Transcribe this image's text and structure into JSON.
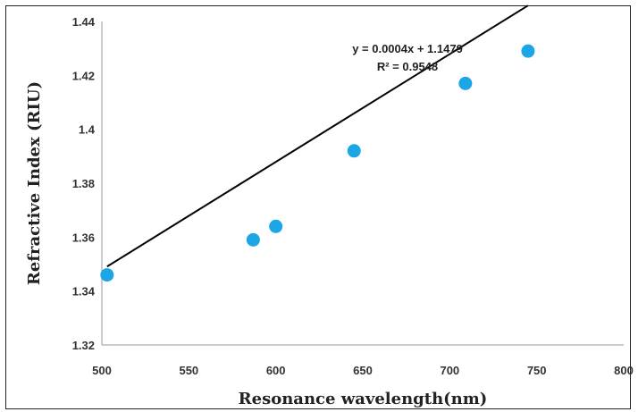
{
  "chart_data": {
    "type": "scatter",
    "title": "",
    "xlabel": "Resonance wavelength(nm)",
    "ylabel": "Refractive Index (RIU)",
    "xlim": [
      500,
      800
    ],
    "ylim": [
      1.32,
      1.44
    ],
    "x_ticks": [
      "500",
      "550",
      "600",
      "650",
      "700",
      "750",
      "800"
    ],
    "y_ticks": [
      "1.32",
      "1.34",
      "1.36",
      "1.38",
      "1.4",
      "1.42",
      "1.44"
    ],
    "grid": false,
    "points": [
      {
        "x": 503,
        "y": 1.346
      },
      {
        "x": 587,
        "y": 1.359
      },
      {
        "x": 600,
        "y": 1.364
      },
      {
        "x": 645,
        "y": 1.392
      },
      {
        "x": 709,
        "y": 1.417
      },
      {
        "x": 745,
        "y": 1.429
      }
    ],
    "trendline": {
      "x_start": 503,
      "x_end": 745,
      "equation": "y = 0.0004x + 1.1479",
      "r_squared": "R² = 0.9548"
    },
    "marker_color": "#1da6e6",
    "line_color": "#000000"
  }
}
